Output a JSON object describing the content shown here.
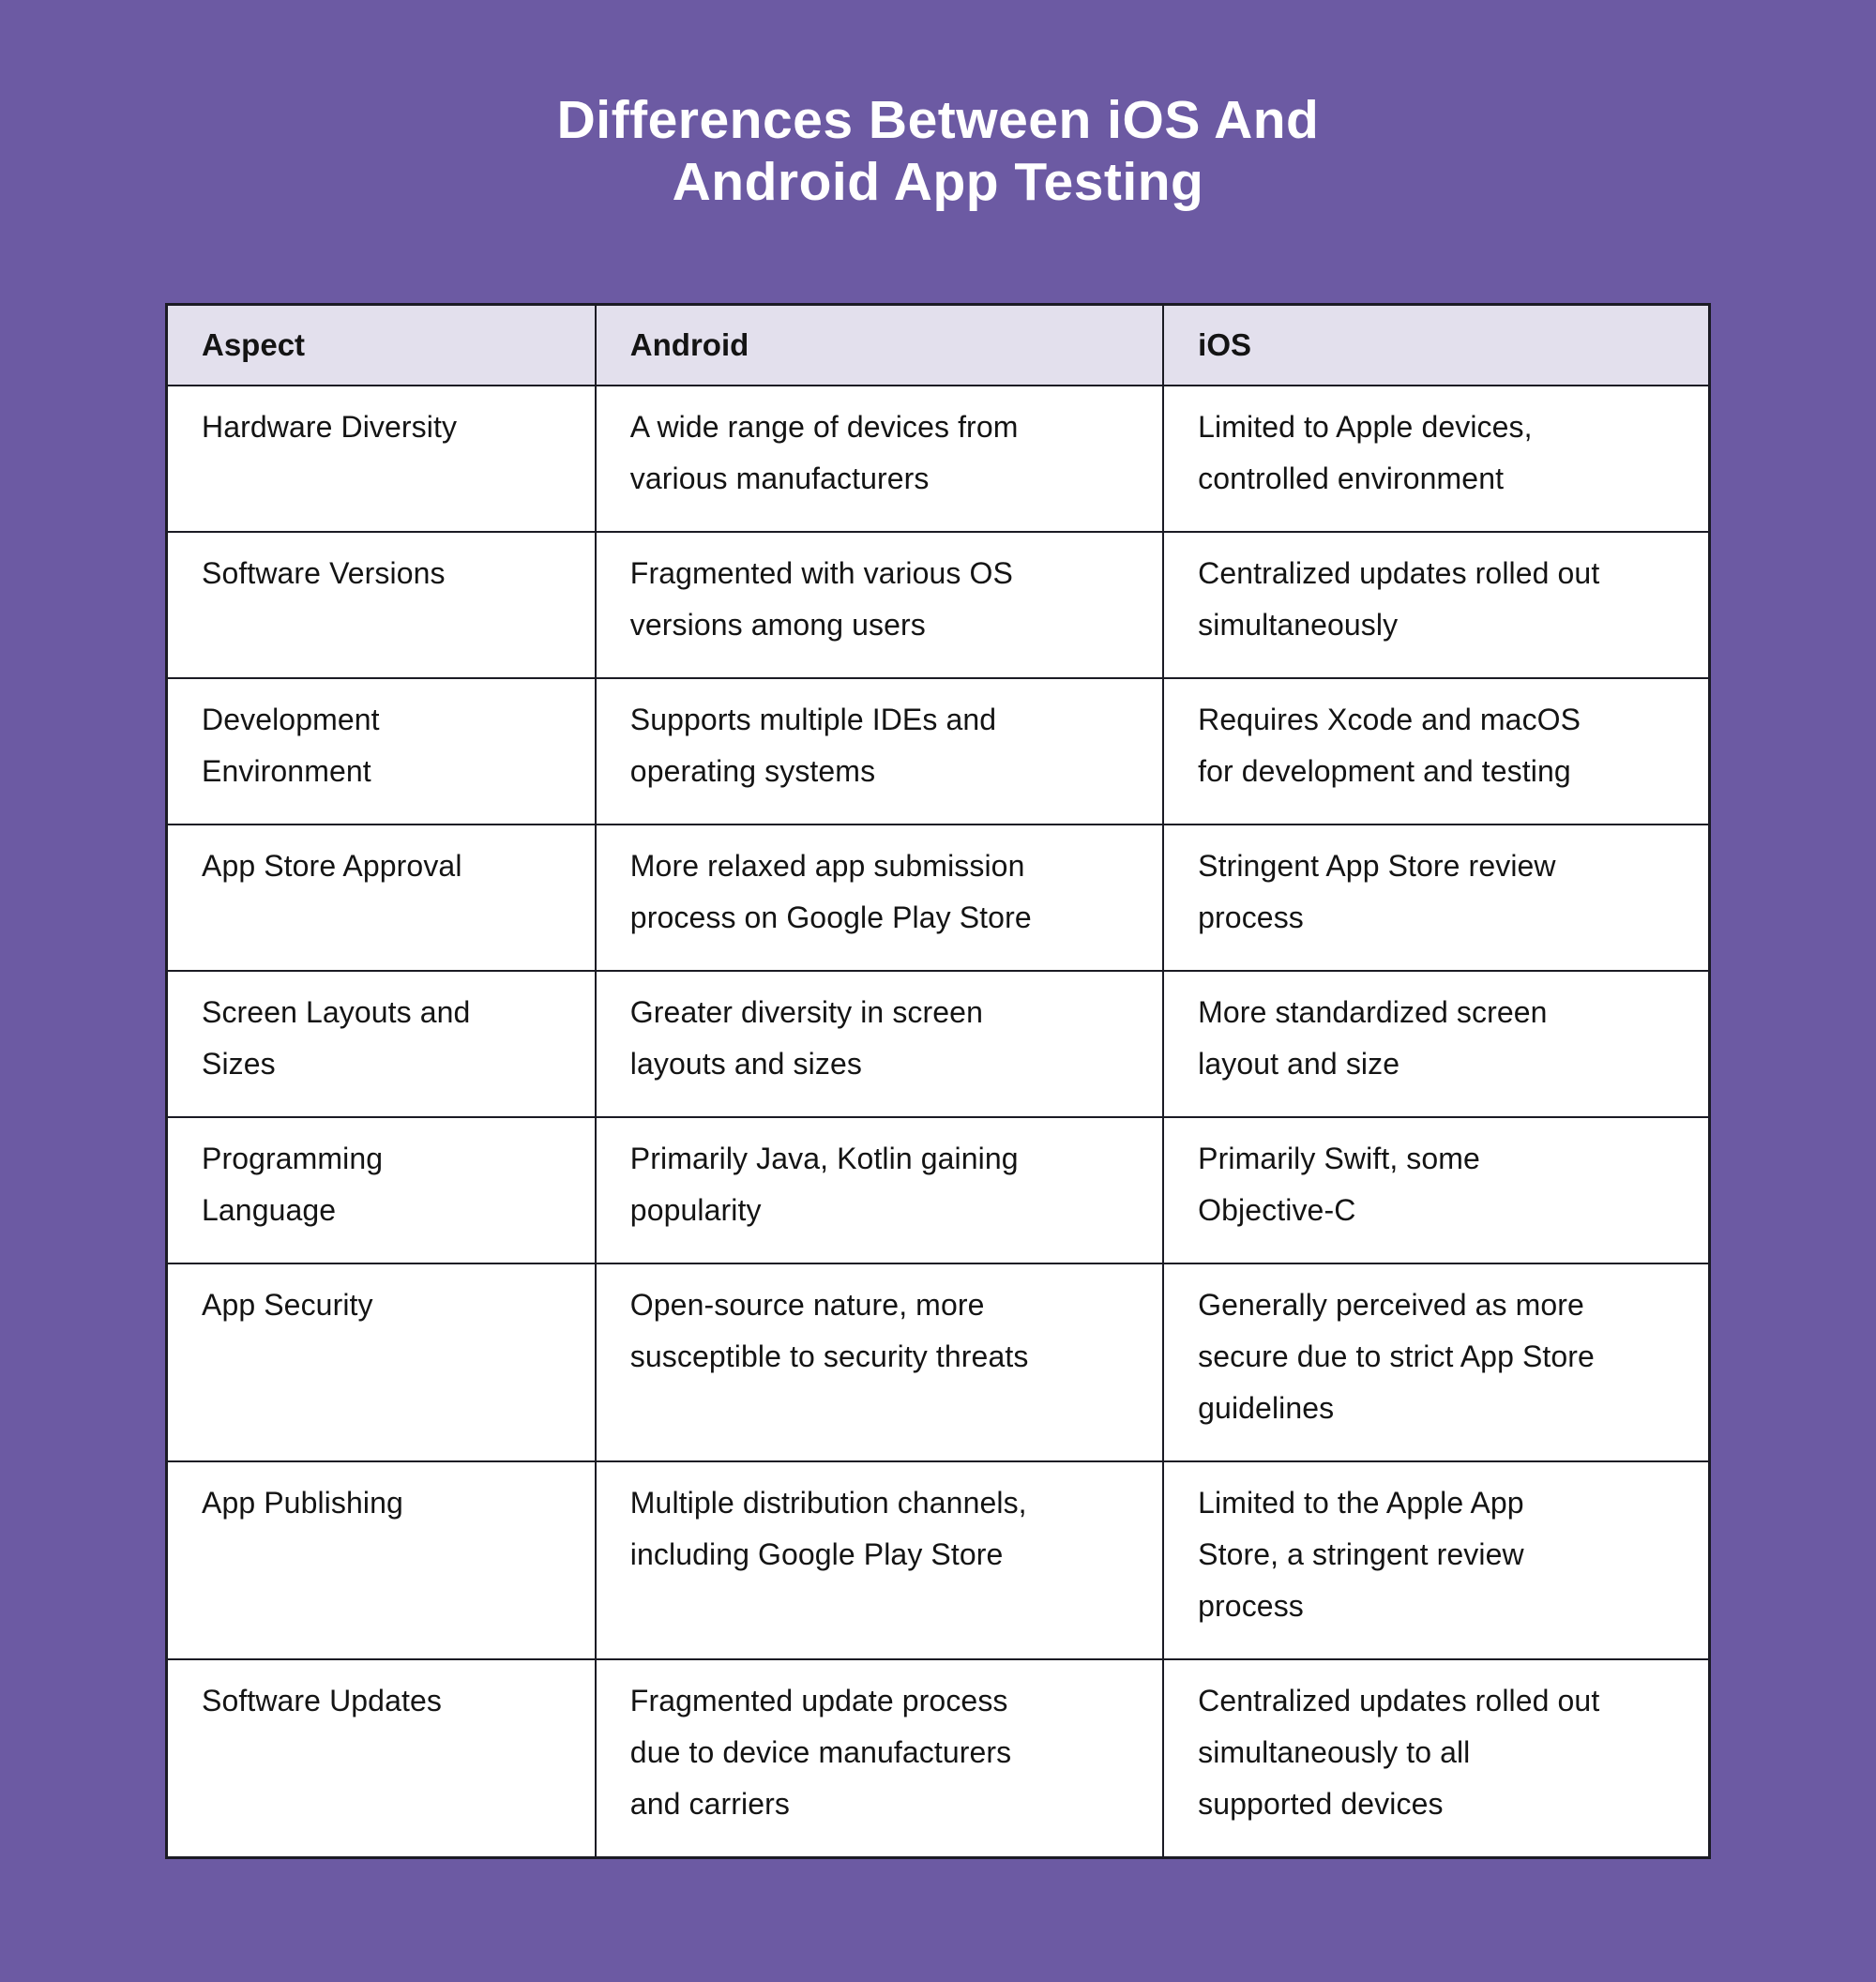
{
  "colors": {
    "background": "#6C5AA3",
    "header_bg": "#E3E0ED",
    "row_bg": "#FFFFFF",
    "border": "#1B1B24",
    "title_text": "#FFFFFF",
    "cell_text": "#141414"
  },
  "title": {
    "line1": "Differences Between iOS And",
    "line2": "Android App Testing"
  },
  "table": {
    "columns": {
      "aspect": "Aspect",
      "android": "Android",
      "ios": "iOS"
    },
    "rows": [
      {
        "aspect": "Hardware Diversity",
        "android": "A wide range of devices from\nvarious manufacturers",
        "ios": "Limited to Apple devices,\ncontrolled environment"
      },
      {
        "aspect": "Software Versions",
        "android": "Fragmented with various OS\nversions among users",
        "ios": "Centralized updates rolled out\nsimultaneously"
      },
      {
        "aspect": "Development\nEnvironment",
        "android": "Supports multiple IDEs and\noperating systems",
        "ios": "Requires Xcode and macOS\nfor development and testing"
      },
      {
        "aspect": "App Store Approval",
        "android": "More relaxed app submission\nprocess on Google Play Store",
        "ios": "Stringent App Store review\nprocess"
      },
      {
        "aspect": "Screen Layouts and\nSizes",
        "android": "Greater diversity in screen\nlayouts and sizes",
        "ios": "More standardized screen\nlayout and size"
      },
      {
        "aspect": "Programming\nLanguage",
        "android": "Primarily Java, Kotlin gaining\npopularity",
        "ios": "Primarily Swift, some\nObjective-C"
      },
      {
        "aspect": "App Security",
        "android": "Open-source nature, more\nsusceptible to security threats",
        "ios": "Generally perceived as more\nsecure due to strict App Store\nguidelines"
      },
      {
        "aspect": "App Publishing",
        "android": "Multiple distribution channels,\nincluding Google Play Store",
        "ios": "Limited to the Apple App\nStore, a stringent review\nprocess"
      },
      {
        "aspect": "Software Updates",
        "android": "Fragmented update process\ndue to device manufacturers\nand carriers",
        "ios": "Centralized updates rolled out\nsimultaneously to all\nsupported devices"
      }
    ]
  }
}
